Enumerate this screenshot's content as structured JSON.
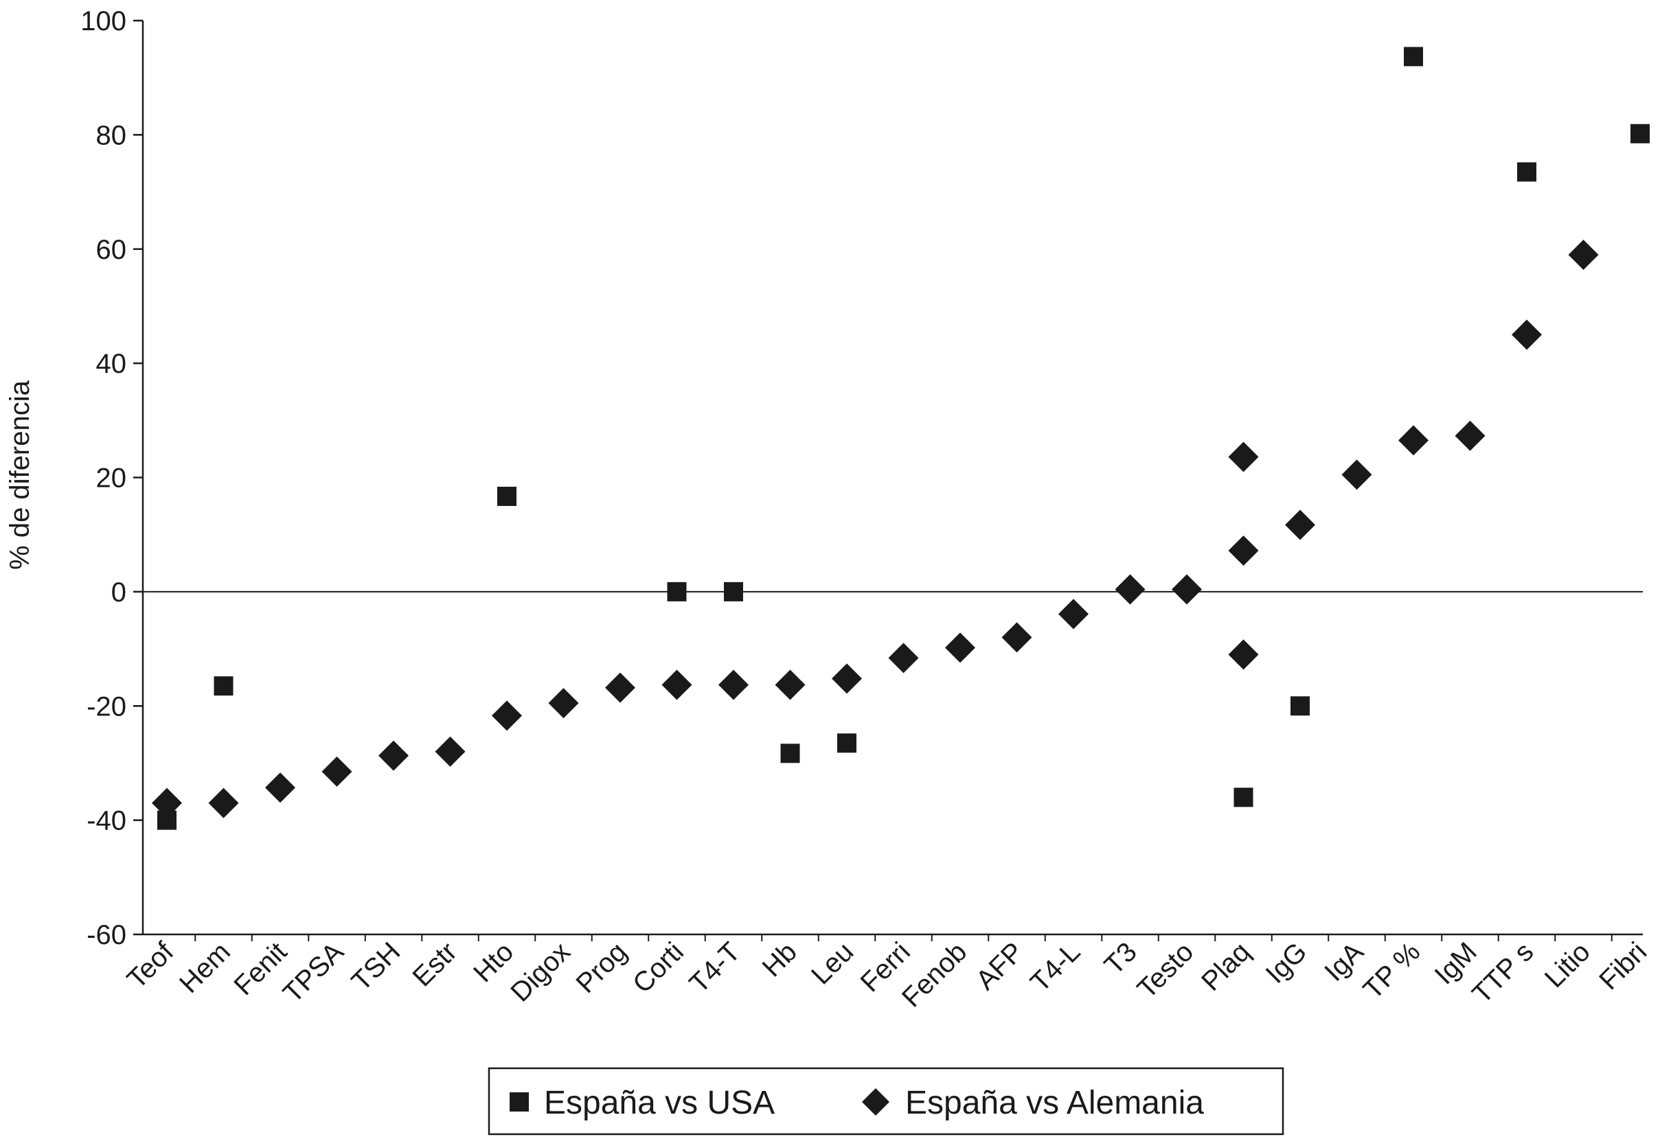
{
  "chart_data": {
    "type": "scatter",
    "title": "",
    "xlabel": "",
    "ylabel": "% de diferencia",
    "ylim": [
      -60,
      100
    ],
    "yticks": [
      -60,
      -40,
      -20,
      0,
      20,
      40,
      60,
      80,
      100
    ],
    "grid": false,
    "legend_position": "bottom-center",
    "categories": [
      "Teof",
      "Hem",
      "Fenit",
      "TPSA",
      "TSH",
      "Estr",
      "Hto",
      "Digox",
      "Prog",
      "Corti",
      "T4-T",
      "Hb",
      "Leu",
      "Ferri",
      "Fenob",
      "AFP",
      "T4-L",
      "T3",
      "Testo",
      "Plaq",
      "IgG",
      "IgA",
      "TP %",
      "IgM",
      "TTP s",
      "Litio",
      "Fibri"
    ],
    "series": [
      {
        "name": "España vs USA",
        "marker": "square",
        "color": "#1a1a1a",
        "points": [
          {
            "x": "Teof",
            "y": -40
          },
          {
            "x": "Hem",
            "y": -16.5
          },
          {
            "x": "Hto",
            "y": 16.7
          },
          {
            "x": "Corti",
            "y": 0
          },
          {
            "x": "T4-T",
            "y": 0
          },
          {
            "x": "Hb",
            "y": -28.3
          },
          {
            "x": "Leu",
            "y": -26.5
          },
          {
            "x": "Plaq",
            "y": -36
          },
          {
            "x": "IgG",
            "y": -20
          },
          {
            "x": "TP %",
            "y": 93.7
          },
          {
            "x": "TTP s",
            "y": 73.5
          },
          {
            "x": "Fibri",
            "y": 80.2
          }
        ]
      },
      {
        "name": "España vs Alemania",
        "marker": "diamond",
        "color": "#1a1a1a",
        "points": [
          {
            "x": "Teof",
            "y": -37
          },
          {
            "x": "Hem",
            "y": -37
          },
          {
            "x": "Fenit",
            "y": -34.3
          },
          {
            "x": "TPSA",
            "y": -31.5
          },
          {
            "x": "TSH",
            "y": -28.7
          },
          {
            "x": "Estr",
            "y": -28
          },
          {
            "x": "Hto",
            "y": -21.7
          },
          {
            "x": "Digox",
            "y": -19.5
          },
          {
            "x": "Prog",
            "y": -16.8
          },
          {
            "x": "Corti",
            "y": -16.3
          },
          {
            "x": "T4-T",
            "y": -16.3
          },
          {
            "x": "Hb",
            "y": -16.3
          },
          {
            "x": "Leu",
            "y": -15.2
          },
          {
            "x": "Ferri",
            "y": -11.6
          },
          {
            "x": "Fenob",
            "y": -9.8
          },
          {
            "x": "AFP",
            "y": -8
          },
          {
            "x": "T4-L",
            "y": -3.9
          },
          {
            "x": "T3",
            "y": 0.4
          },
          {
            "x": "Testo",
            "y": 0.4
          },
          {
            "x": "Plaq",
            "y": 23.6
          },
          {
            "x": "Plaq",
            "y": 7.2
          },
          {
            "x": "Plaq",
            "y": -11
          },
          {
            "x": "IgG",
            "y": 11.7
          },
          {
            "x": "IgA",
            "y": 20.5
          },
          {
            "x": "TP %",
            "y": 26.5
          },
          {
            "x": "IgM",
            "y": 27.3
          },
          {
            "x": "TTP s",
            "y": 45
          },
          {
            "x": "Litio",
            "y": 59
          }
        ]
      }
    ]
  }
}
